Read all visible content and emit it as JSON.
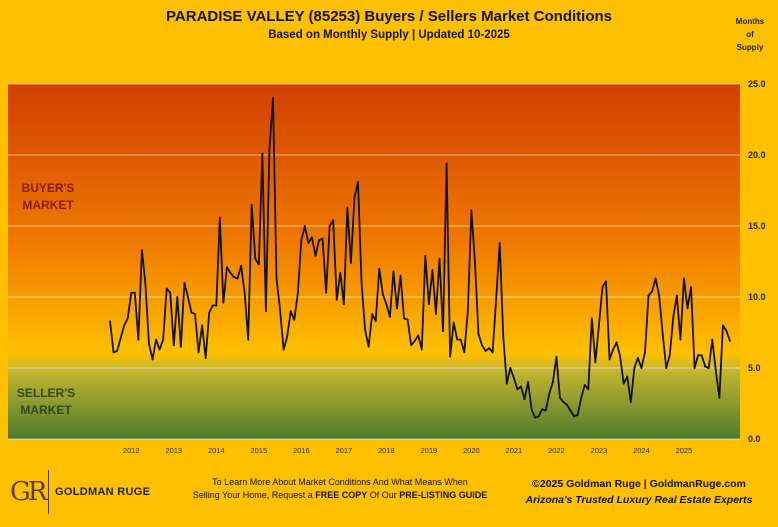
{
  "header": {
    "title": "PARADISE VALLEY (85253) Buyers / Sellers Market Conditions",
    "subtitle": "Based on Monthly Supply | Updated 10-2025",
    "y_unit_lines": [
      "Months",
      "of",
      "Supply"
    ]
  },
  "zones": {
    "buyers_lines": [
      "BUYER'S",
      "MARKET"
    ],
    "sellers_lines": [
      "SELLER'S",
      "MARKET"
    ],
    "colors": {
      "buyers_top": "#d04000",
      "buyers_mid": "#f07a00",
      "transition": "#ffc000",
      "sellers_top": "#c8b830",
      "sellers_bottom": "#4e7a2c",
      "buyers_text": "#8b1a00",
      "sellers_text": "#2f4a18",
      "line": "#111111"
    }
  },
  "footer": {
    "logo_mark": "GR",
    "logo_name": "GOLDMAN RUGE",
    "cta_line1": "To Learn More About Market Conditions And What Means When",
    "cta_line2_pre": "Selling Your Home, Request a ",
    "cta_line2_bold1": "FREE COPY",
    "cta_line2_mid": " Of Our ",
    "cta_line2_bold2": "PRE-LISTING GUIDE",
    "copyright": "©2025 Goldman Ruge  |  GoldmanRuge.com",
    "tagline": "Arizona's Trusted Luxury Real Estate Experts"
  },
  "chart_data": {
    "type": "line",
    "x_start": "2011-07",
    "x_ticks": [
      "2012",
      "2013",
      "2014",
      "2015",
      "2016",
      "2017",
      "2018",
      "2019",
      "2020",
      "2021",
      "2022",
      "2023",
      "2024",
      "2025"
    ],
    "y_ticks": [
      "0.0",
      "5.0",
      "10.0",
      "15.0",
      "20.0",
      "25.0"
    ],
    "ylim": [
      0,
      25
    ],
    "grid": true,
    "series": [
      {
        "values": [
          8.3,
          6.1,
          6.2,
          7.1,
          8.0,
          8.5,
          10.3,
          10.3,
          7.0,
          13.3,
          10.9,
          6.7,
          5.6,
          7.0,
          6.3,
          7.0,
          10.6,
          10.3,
          6.6,
          10.0,
          6.5,
          11.0,
          10.0,
          8.9,
          8.8,
          6.1,
          8.0,
          5.7,
          8.9,
          9.4,
          9.4,
          15.6,
          9.6,
          12.1,
          11.7,
          11.4,
          11.3,
          12.2,
          10.3,
          7.0,
          16.5,
          12.7,
          12.3,
          20.1,
          9.0,
          20.4,
          24.0,
          11.3,
          9.1,
          6.3,
          7.2,
          9.0,
          8.4,
          10.2,
          14.0,
          15.0,
          13.8,
          14.2,
          12.9,
          14.0,
          14.1,
          10.3,
          15.0,
          15.4,
          9.8,
          11.7,
          9.5,
          16.3,
          12.4,
          17.0,
          18.1,
          11.0,
          7.7,
          6.5,
          8.8,
          8.3,
          12.0,
          10.2,
          9.5,
          8.6,
          11.8,
          9.2,
          11.5,
          8.5,
          8.4,
          6.6,
          6.9,
          7.3,
          6.3,
          12.9,
          9.5,
          11.9,
          8.8,
          12.7,
          7.6,
          19.4,
          5.8,
          8.2,
          7.0,
          7.0,
          6.1,
          9.0,
          16.1,
          12.5,
          7.4,
          6.6,
          6.2,
          6.4,
          6.1,
          9.9,
          13.8,
          7.2,
          3.9,
          5.0,
          4.3,
          3.5,
          3.7,
          2.8,
          4.0,
          2.1,
          1.5,
          1.6,
          2.1,
          2.0,
          3.2,
          4.0,
          5.8,
          2.9,
          2.6,
          2.4,
          2.0,
          1.6,
          1.7,
          2.9,
          3.8,
          3.5,
          8.5,
          5.4,
          8.0,
          10.7,
          11.1,
          5.6,
          6.3,
          6.8,
          5.8,
          3.9,
          4.4,
          2.6,
          5.0,
          5.7,
          5.0,
          6.1,
          10.1,
          10.4,
          11.3,
          10.1,
          7.4,
          5.0,
          5.9,
          8.6,
          10.1,
          7.0,
          11.3,
          9.2,
          10.7,
          5.0,
          5.9,
          5.9,
          5.1,
          5.0,
          7.0,
          4.8,
          2.9,
          8.0,
          7.6,
          6.9
        ]
      }
    ]
  }
}
